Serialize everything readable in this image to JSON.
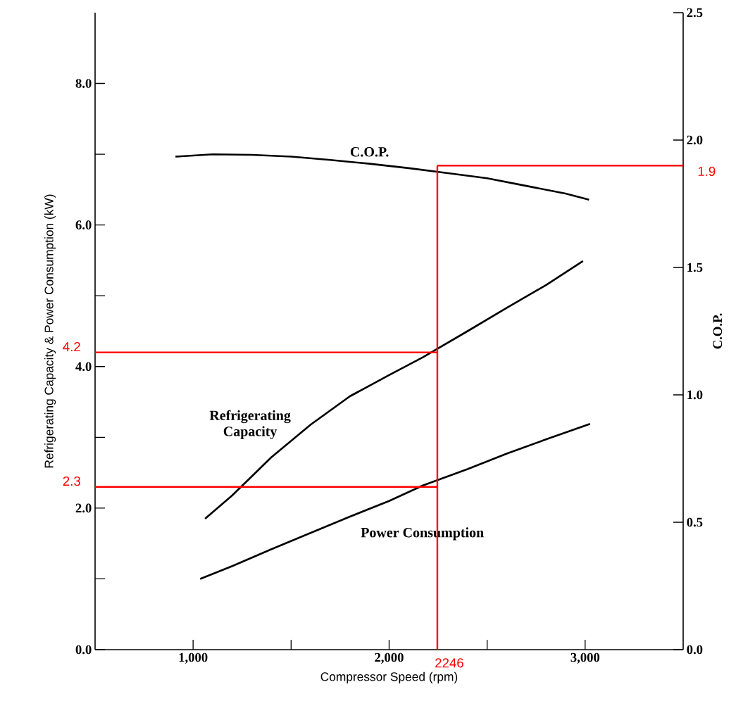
{
  "chart_data": {
    "type": "line",
    "xlabel": "Compressor Speed (rpm)",
    "ylabel": "Refrigerating Capacity & Power Consumption (kW)",
    "y2label": "C.O.P.",
    "xlim": [
      500,
      3500
    ],
    "xticks": [
      {
        "value": 1000,
        "label": "1,000"
      },
      {
        "value": 1500,
        "label": null
      },
      {
        "value": 2000,
        "label": "2,000"
      },
      {
        "value": 2500,
        "label": null
      },
      {
        "value": 3000,
        "label": "3,000"
      }
    ],
    "ylim": [
      0,
      9
    ],
    "yticks": [
      {
        "value": 0,
        "label": "0.0"
      },
      {
        "value": 1,
        "label": null
      },
      {
        "value": 2,
        "label": "2.0"
      },
      {
        "value": 3,
        "label": null
      },
      {
        "value": 4,
        "label": "4.0"
      },
      {
        "value": 5,
        "label": null
      },
      {
        "value": 6,
        "label": "6.0"
      },
      {
        "value": 7,
        "label": null
      },
      {
        "value": 8,
        "label": "8.0"
      }
    ],
    "y2lim": [
      0,
      2.5
    ],
    "y2ticks": [
      {
        "value": 0,
        "label": "0.0"
      },
      {
        "value": 0.5,
        "label": "0.5"
      },
      {
        "value": 1,
        "label": "1.0"
      },
      {
        "value": 1.5,
        "label": "1.5"
      },
      {
        "value": 2,
        "label": "2.0"
      },
      {
        "value": 2.5,
        "label": "2.5"
      }
    ],
    "series": [
      {
        "name": "C.O.P.",
        "color": "#000000",
        "axis": "y2",
        "x": [
          910,
          1100,
          1300,
          1500,
          1700,
          1900,
          2100,
          2300,
          2500,
          2700,
          2900,
          3020
        ],
        "values": [
          1.935,
          1.944,
          1.942,
          1.935,
          1.922,
          1.907,
          1.89,
          1.87,
          1.85,
          1.82,
          1.79,
          1.766
        ]
      },
      {
        "name": "Refrigerating Capacity",
        "color": "#000000",
        "x": [
          1061,
          1200,
          1400,
          1600,
          1800,
          2000,
          2172,
          2400,
          2600,
          2800,
          2989
        ],
        "values": [
          1.85,
          2.18,
          2.72,
          3.18,
          3.58,
          3.88,
          4.13,
          4.5,
          4.83,
          5.15,
          5.49
        ]
      },
      {
        "name": "Power Consumption",
        "color": "#000000",
        "x": [
          1036,
          1200,
          1400,
          1600,
          1800,
          2000,
          2172,
          2400,
          2600,
          2800,
          3025
        ],
        "values": [
          1.0,
          1.18,
          1.42,
          1.65,
          1.88,
          2.1,
          2.32,
          2.55,
          2.77,
          2.97,
          3.19
        ]
      }
    ],
    "ref_lines": [
      {
        "axis": "x",
        "value": 2246,
        "label": "2246",
        "color": "#ff0000"
      },
      {
        "axis": "y",
        "value": 4.2,
        "label": "4.2",
        "color": "#ff0000"
      },
      {
        "axis": "y",
        "value": 2.3,
        "label": "2.3",
        "color": "#ff0000"
      },
      {
        "axis": "y2",
        "value": 1.9,
        "label": "1.9",
        "color": "#ff0000"
      }
    ]
  }
}
